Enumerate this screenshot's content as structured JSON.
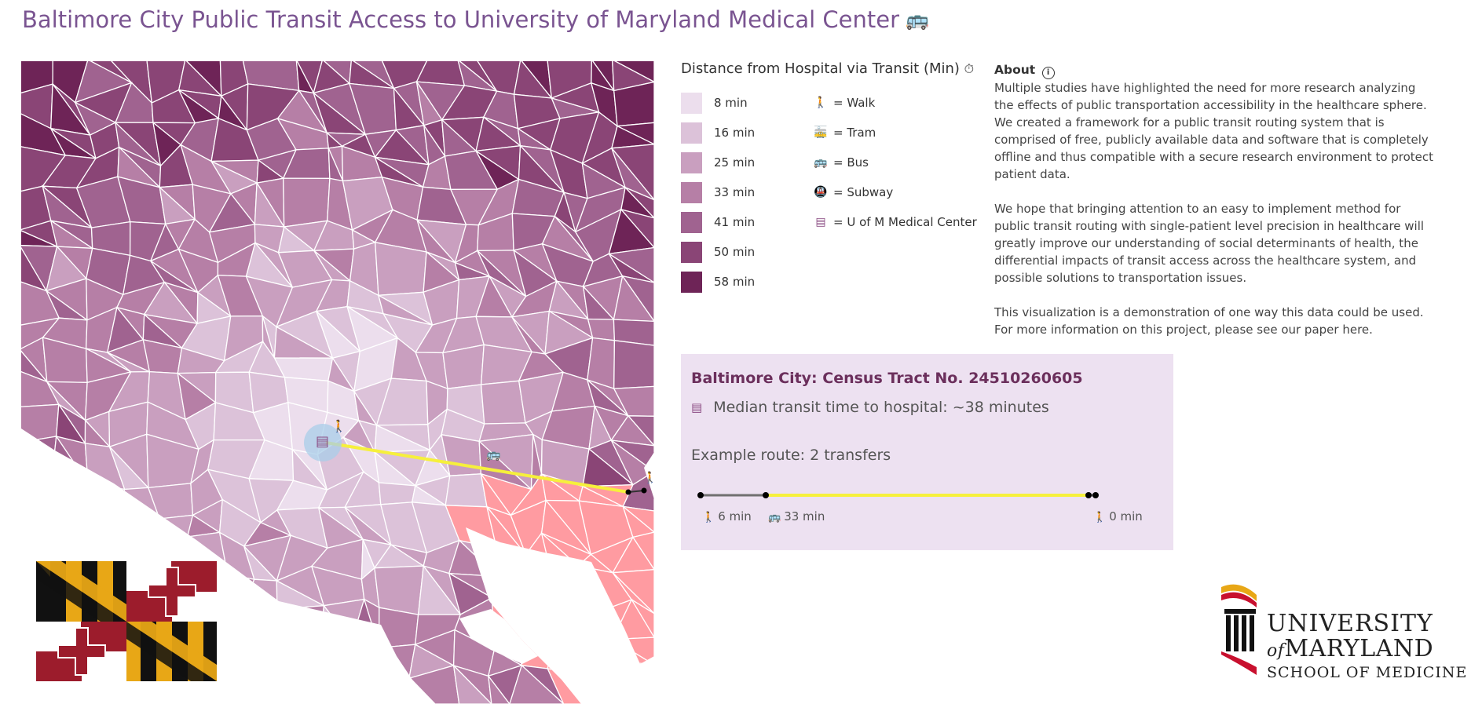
{
  "header": {
    "title": "Baltimore City Public Transit Access to University of Maryland Medical Center",
    "bus_icon": "bus-icon"
  },
  "map": {
    "tract_colors": [
      "#ecdeed",
      "#dcc2d9",
      "#c99fbf",
      "#b67fa6",
      "#a06390",
      "#8a4576",
      "#6e2457"
    ],
    "selected_tract_color": "#ff9ba1",
    "route_color": "#f6f03c",
    "hospital_icon": "hospital-icon",
    "hospital_marker_color": "#a9cde8",
    "walk_icon": "walk-icon",
    "bus_icon": "bus-icon"
  },
  "legend": {
    "title": "Distance from Hospital via Transit (Min)",
    "title_icon": "stopwatch-icon",
    "scale": [
      {
        "label": "8 min",
        "color": "#ecdeed"
      },
      {
        "label": "16 min",
        "color": "#dcc2d9"
      },
      {
        "label": "25 min",
        "color": "#c99fbf"
      },
      {
        "label": "33 min",
        "color": "#b67fa6"
      },
      {
        "label": "41 min",
        "color": "#a06390"
      },
      {
        "label": "50 min",
        "color": "#8a4576"
      },
      {
        "label": "58 min",
        "color": "#6e2457"
      }
    ],
    "modes": [
      {
        "icon": "walk-icon",
        "label": "= Walk"
      },
      {
        "icon": "tram-icon",
        "label": "= Tram"
      },
      {
        "icon": "bus-icon",
        "label": "= Bus"
      },
      {
        "icon": "subway-icon",
        "label": "= Subway"
      },
      {
        "icon": "hospital-icon",
        "label": "= U of M Medical Center"
      }
    ]
  },
  "about": {
    "heading": "About",
    "paragraphs": [
      "Multiple studies have highlighted the need for more research analyzing the effects of public transportation accessibility in the healthcare sphere. We created a framework for a public transit routing system that is comprised of free, publicly available data and software that is completely offline and thus compatible with a secure research environment to protect patient data.",
      "We hope that bringing attention to an easy to implement method for public transit routing with single-patient level precision in healthcare will greatly improve our understanding of social determinants of health, the differential impacts of transit access across the healthcare system, and possible solutions to transportation issues.",
      "This visualization is a demonstration of one way this data could be used. For more information on this project, please see our paper here."
    ]
  },
  "panel": {
    "title": "Baltimore City: Census Tract No. 24510260605",
    "median": "Median transit time to hospital: ~38 minutes",
    "route": "Example route: 2 transfers",
    "segments": [
      {
        "icon": "walk-icon",
        "label": "6 min",
        "color": "#707070"
      },
      {
        "icon": "bus-icon",
        "label": "33 min",
        "color": "#f6f03c"
      },
      {
        "icon": "walk-icon",
        "label": "0 min",
        "color": "#707070"
      }
    ]
  },
  "logo": {
    "line1": "UNIVERSITY",
    "line2_prefix": "of",
    "line2": "MARYLAND",
    "line3": "SCHOOL OF MEDICINE"
  }
}
